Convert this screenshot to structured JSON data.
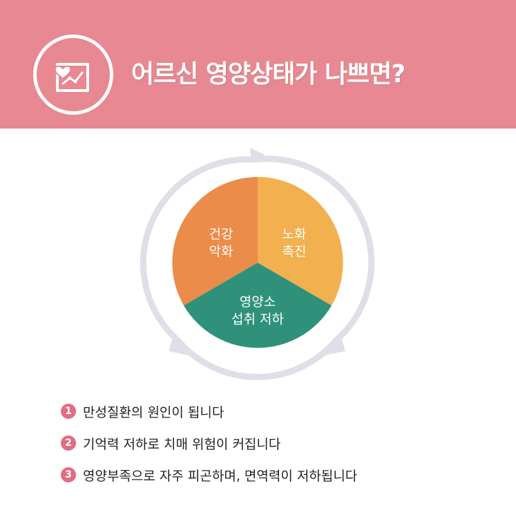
{
  "header": {
    "title": "어르신 영양상태가 나쁘면?",
    "icon": "health-chart-icon",
    "background_color": "#e88892"
  },
  "cycle": {
    "segments": [
      {
        "line1": "건강",
        "line2": "악화",
        "color": "#eb8c4b"
      },
      {
        "line1": "노화",
        "line2": "촉진",
        "color": "#f2b04f"
      },
      {
        "line1": "영양소",
        "line2": "섭취 저하",
        "color": "#2f917a"
      }
    ],
    "ring_color": "#e1dee8"
  },
  "list": {
    "items": [
      {
        "number": "1",
        "text": "만성질환의 원인이 됩니다"
      },
      {
        "number": "2",
        "text": "기억력 저하로 치매 위험이 커집니다"
      },
      {
        "number": "3",
        "text": "영양부족으로 자주 피곤하며, 면역력이 저하됩니다"
      }
    ],
    "badge_color": "#e46c82"
  }
}
